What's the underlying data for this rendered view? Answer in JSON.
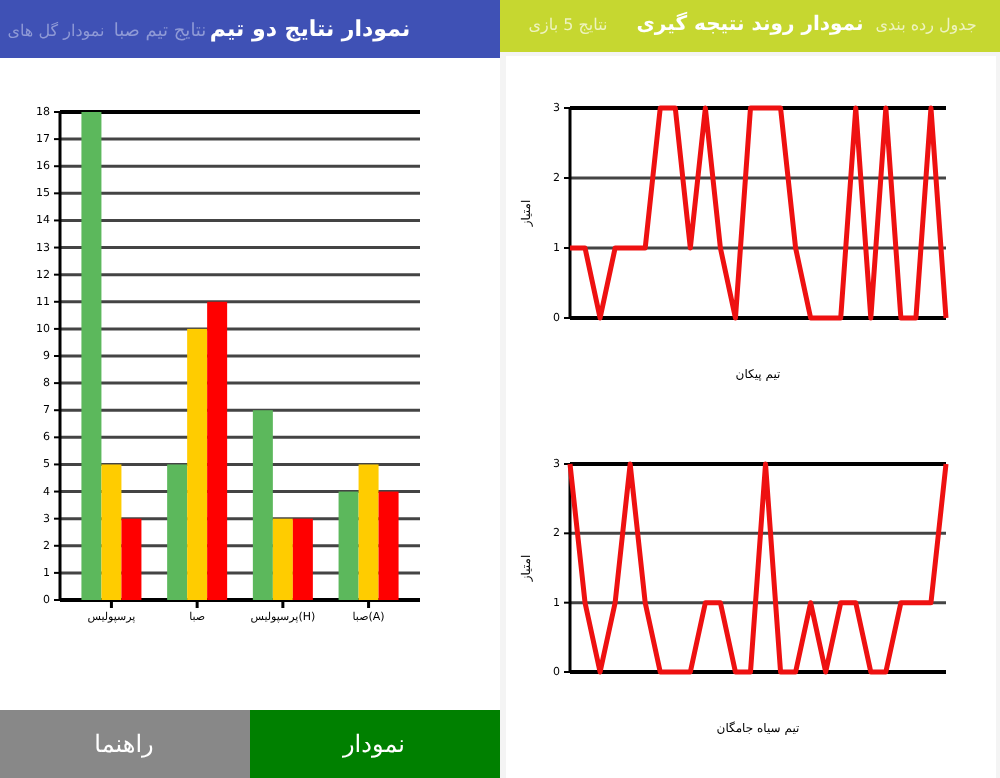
{
  "chart_data": [
    {
      "type": "bar",
      "title": "نمودار نتایج دو تیم",
      "annotations": [
        "نتایج تیم صبا",
        "نمودار گل های",
        "نمودار",
        "راهنما"
      ],
      "categories": [
        "پرسپولیس",
        "صبا",
        "پرسپولیس(H)",
        "صبا(A)"
      ],
      "series": [
        {
          "color": "#5cb85c",
          "values": [
            18,
            5,
            7,
            4
          ]
        },
        {
          "color": "#ffcc00",
          "values": [
            5,
            10,
            3,
            5
          ]
        },
        {
          "color": "#ff0000",
          "values": [
            3,
            11,
            3,
            4
          ]
        }
      ],
      "ylim": [
        0,
        18
      ],
      "yticks": [
        0,
        1,
        2,
        3,
        4,
        5,
        6,
        7,
        8,
        9,
        10,
        11,
        12,
        13,
        14,
        15,
        16,
        17,
        18
      ],
      "grid": "y"
    },
    {
      "type": "line",
      "title": "نمودار روند نتیجه گیری",
      "annotations": [
        "نتایج 5 بازی",
        "جدول رده بندی"
      ],
      "xlabel": "تیم پیکان",
      "ylabel": "امتیاز",
      "categories": [
        null,
        null,
        null,
        null,
        null,
        null,
        null,
        null,
        null,
        null,
        null,
        null,
        null,
        null,
        null,
        null,
        null,
        null,
        null,
        null,
        null,
        null,
        null,
        null,
        null,
        null
      ],
      "series": [
        {
          "color": "#ee1111",
          "values": [
            1,
            1,
            0,
            1,
            1,
            1,
            3,
            3,
            1,
            3,
            1,
            0,
            3,
            3,
            3,
            1,
            0,
            0,
            0,
            3,
            0,
            3,
            0,
            0,
            3,
            0
          ]
        }
      ],
      "ylim": [
        0,
        3
      ],
      "yticks": [
        0,
        1,
        2,
        3
      ],
      "grid": "y",
      "marker": "none"
    },
    {
      "type": "line",
      "xlabel": "تیم سیاه جامگان",
      "ylabel": "امتیاز",
      "categories": [
        null,
        null,
        null,
        null,
        null,
        null,
        null,
        null,
        null,
        null,
        null,
        null,
        null,
        null,
        null,
        null,
        null,
        null,
        null,
        null,
        null,
        null,
        null,
        null,
        null,
        null
      ],
      "series": [
        {
          "color": "#ee1111",
          "values": [
            3,
            1,
            0,
            1,
            3,
            1,
            0,
            0,
            0,
            1,
            1,
            0,
            0,
            3,
            0,
            0,
            1,
            0,
            1,
            1,
            0,
            0,
            1,
            1,
            1,
            3
          ]
        }
      ],
      "ylim": [
        0,
        3
      ],
      "yticks": [
        0,
        1,
        2,
        3
      ],
      "grid": "y",
      "marker": "none"
    }
  ]
}
